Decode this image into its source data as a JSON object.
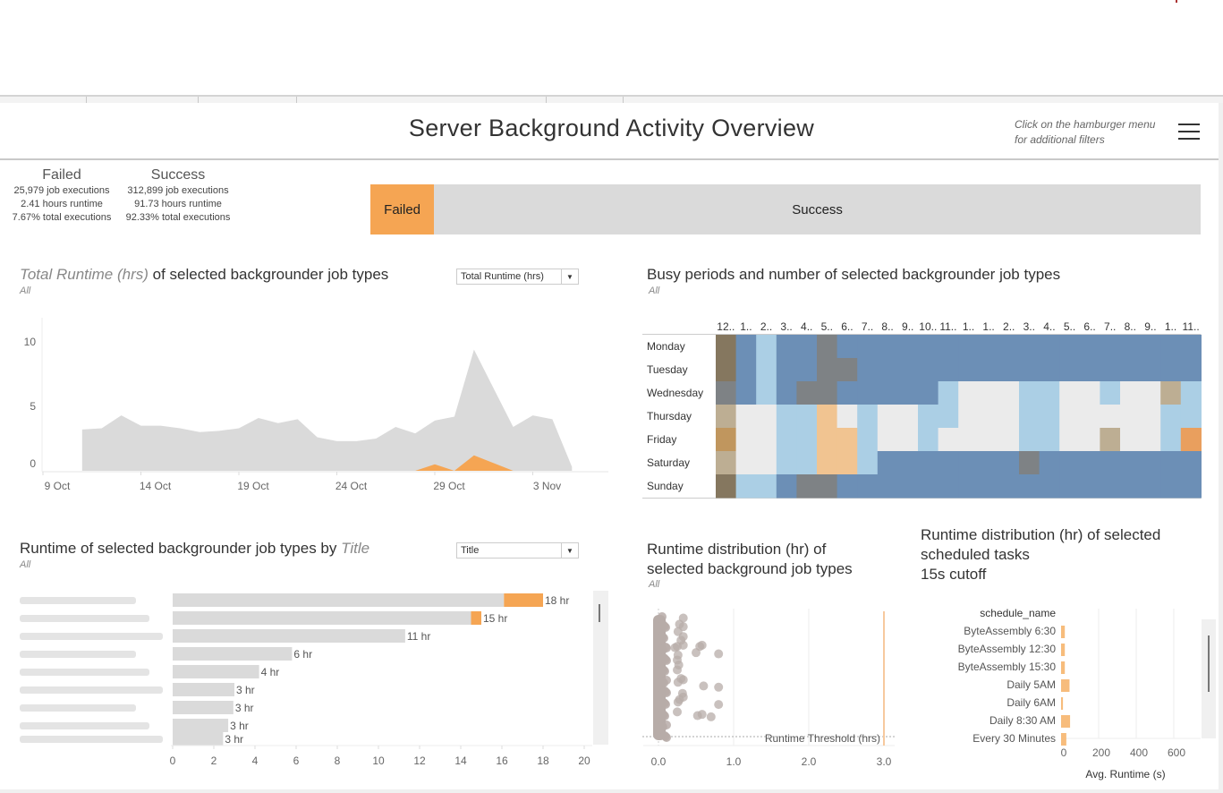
{
  "header": {
    "title": "Server Background Activity Overview",
    "hint_line1": "Click on the hamburger menu",
    "hint_line2": "for additional filters",
    "menu_icon": "hamburger-icon"
  },
  "kpis": {
    "failed": {
      "label": "Failed",
      "executions": "25,979  job executions",
      "runtime": "2.41  hours runtime",
      "share": "7.67% total executions"
    },
    "success": {
      "label": "Success",
      "executions": "312,899  job executions",
      "runtime": "91.73  hours runtime",
      "share": "92.33% total executions"
    }
  },
  "ratio_bar": {
    "segments": [
      {
        "label": "Failed",
        "share": 7.67,
        "color": "#f5a553"
      },
      {
        "label": "Success",
        "share": 92.33,
        "color": "#dadada"
      }
    ]
  },
  "runtime_chart": {
    "title_measure": "Total Runtime (hrs)",
    "title_rest": " of selected backgrounder job types",
    "subtitle": "All",
    "dropdown_value": "Total Runtime (hrs)"
  },
  "heatmap_panel": {
    "title": "Busy periods and number of selected backgrounder job types",
    "subtitle": "All"
  },
  "title_bar_panel": {
    "title_prefix": "Runtime of selected backgrounder job types by ",
    "title_dim": "Title",
    "subtitle": "All",
    "dropdown_value": "Title"
  },
  "scatter_panel": {
    "title_line1": "Runtime distribution (hr) of",
    "title_line2": "selected background job types",
    "subtitle": "All"
  },
  "schedule_panel": {
    "title_line1": "Runtime distribution (hr) of selected",
    "title_line2": "scheduled tasks",
    "title_line3": "15s cutoff"
  },
  "chart_data": [
    {
      "type": "area",
      "title": "Total Runtime (hrs) of selected backgrounder job types",
      "xlabel": "",
      "ylabel": "",
      "x_ticks": [
        "9 Oct",
        "14 Oct",
        "19 Oct",
        "24 Oct",
        "29 Oct",
        "3 Nov"
      ],
      "y_ticks": [
        0,
        5,
        10
      ],
      "ylim": [
        0,
        11
      ],
      "x_start_day": 9,
      "x_end_day": 38,
      "series": [
        {
          "name": "Success",
          "color": "#dadada",
          "days": [
            11,
            12,
            13,
            14,
            15,
            16,
            17,
            18,
            19,
            20,
            21,
            22,
            23,
            24,
            25,
            26,
            27,
            28,
            29,
            30,
            31,
            32,
            33,
            34,
            35,
            36
          ],
          "values": [
            3.2,
            3.3,
            4.3,
            3.5,
            3.5,
            3.3,
            3.0,
            3.1,
            3.3,
            4.1,
            3.7,
            4.0,
            2.6,
            2.3,
            2.3,
            2.5,
            3.4,
            2.9,
            3.9,
            4.2,
            9.4,
            6.4,
            3.4,
            4.3,
            4.0,
            0.3
          ]
        },
        {
          "name": "Failed",
          "color": "#f5a553",
          "days": [
            28,
            29,
            30,
            31,
            32,
            33
          ],
          "values": [
            0,
            0.5,
            0,
            1.2,
            0.6,
            0
          ]
        }
      ]
    },
    {
      "type": "heatmap",
      "title": "Busy periods and number of selected backgrounder job types",
      "columns": [
        "12..",
        "1..",
        "2..",
        "3..",
        "4..",
        "5..",
        "6..",
        "7..",
        "8..",
        "9..",
        "10..",
        "11..",
        "1..",
        "1..",
        "2..",
        "3..",
        "4..",
        "5..",
        "6..",
        "7..",
        "8..",
        "9..",
        "1..",
        "11.."
      ],
      "rows": [
        "Monday",
        "Tuesday",
        "Wednesday",
        "Thursday",
        "Friday",
        "Saturday",
        "Sunday"
      ],
      "legend": {
        "B": "#6c8fb6",
        "L": "#abcfe5",
        "G": "#ebebeb",
        "Y": "#7e8285",
        "D": "#85775f",
        "T": "#bdae93",
        "P": "#f1c491",
        "O": "#c0965e",
        "R": "#e99f5e"
      },
      "cells": [
        "DBLBBYBBBBBBBBBBBBBBBBBB",
        "DBLBBYYBBBBBBBBBBBBBBBBB",
        "YBLBYYBBBBBLGGGLLGGLGGTL",
        "TGGLLPGLGGLLGGGLLGGGGGLL",
        "OGGLLPPLGGLGGGGLLGGTGGLR",
        "TGGLLPPLBBBBBBBYBBBBBBBB",
        "DLLBYYBBBBBBBBBBBBBBBBBB"
      ]
    },
    {
      "type": "bar",
      "title": "Runtime of selected backgrounder job types by Title",
      "categories": [
        "(redacted 1)",
        "(redacted 2)",
        "(redacted 3)",
        "(redacted 4)",
        "(redacted 5)",
        "(redacted 6)",
        "(redacted 7)",
        "(redacted 8)",
        "(redacted 9)"
      ],
      "series": [
        {
          "name": "Success",
          "color": "#dadada",
          "values": [
            16.1,
            14.5,
            11.3,
            5.8,
            4.2,
            3.0,
            2.95,
            2.7,
            2.45
          ]
        },
        {
          "name": "Failed",
          "color": "#f5a553",
          "values": [
            1.9,
            0.5,
            0,
            0,
            0,
            0,
            0,
            0,
            0
          ]
        }
      ],
      "data_labels": [
        "18 hr",
        "15 hr",
        "11 hr",
        "6 hr",
        "4 hr",
        "3 hr",
        "3 hr",
        "3 hr",
        "3 hr"
      ],
      "x_ticks": [
        0,
        2,
        4,
        6,
        8,
        10,
        12,
        14,
        16,
        18,
        20
      ],
      "xlim": [
        0,
        20
      ]
    },
    {
      "type": "scatter",
      "title": "Runtime distribution (hr) of selected background job types",
      "x_ticks": [
        "0.0",
        "1.0",
        "2.0",
        "3.0"
      ],
      "xlim": [
        -0.2,
        3.15
      ],
      "reference_line": {
        "label": "Runtime Threshold (hrs)",
        "value": 3.0,
        "color": "#f7c99e"
      },
      "point_color": "#b7aca8",
      "points_x": [
        0.33,
        0.28,
        0.33,
        0.26,
        0.33,
        0.3,
        0.33,
        0.22,
        0.25,
        0.55,
        0.58,
        0.5,
        0.8,
        0.26,
        0.25,
        0.27,
        0.25,
        0.33,
        0.26,
        0.3,
        0.6,
        0.8,
        0.32,
        0.28,
        0.33,
        0.26,
        0.8,
        0.25,
        0.52,
        0.58,
        0.7
      ],
      "points_y": [
        0.04,
        0.09,
        0.11,
        0.15,
        0.19,
        0.22,
        0.26,
        0.28,
        0.27,
        0.27,
        0.26,
        0.32,
        0.33,
        0.34,
        0.38,
        0.42,
        0.46,
        0.54,
        0.56,
        0.53,
        0.59,
        0.6,
        0.65,
        0.7,
        0.68,
        0.72,
        0.74,
        0.8,
        0.83,
        0.82,
        0.84
      ]
    },
    {
      "type": "bar",
      "title": "Runtime distribution (hr) of selected scheduled tasks",
      "ylabel": "schedule_name",
      "xlabel": "Avg. Runtime (s)",
      "categories": [
        "ByteAssembly 6:30",
        "ByteAssembly 12:30",
        "ByteAssembly 15:30",
        "Daily 5AM",
        "Daily 6AM",
        "Daily 8:30 AM",
        "Every 30 Minutes"
      ],
      "values": [
        20,
        20,
        20,
        45,
        10,
        48,
        28
      ],
      "color": "#f7bc7c",
      "x_ticks": [
        0,
        200,
        400,
        600
      ],
      "xlim": [
        0,
        760
      ]
    }
  ]
}
